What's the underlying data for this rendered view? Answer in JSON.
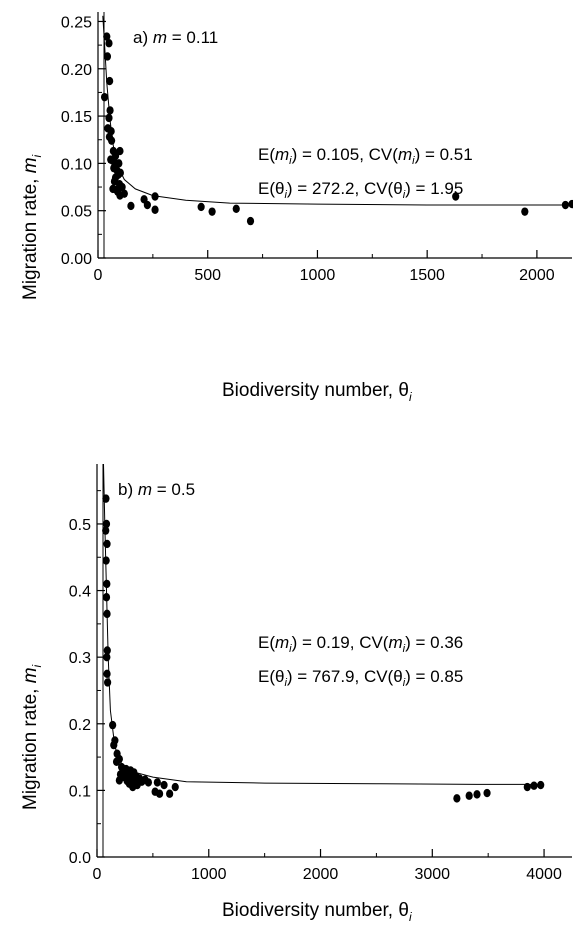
{
  "chart_data": [
    {
      "type": "scatter",
      "panel_label": "a) ",
      "panel_var": "m",
      "panel_value": " = 0.11",
      "xlabel": "Biodiversity number, ",
      "xlabel_symbol": "θ",
      "xlabel_sub": "i",
      "ylabel": "Migration rate, ",
      "ylabel_symbol": "m",
      "ylabel_sub": "i",
      "xlim": [
        0,
        2160
      ],
      "ylim": [
        0,
        0.26
      ],
      "xticks": [
        0,
        500,
        1000,
        1500,
        2000
      ],
      "xtick_labels": [
        "0",
        "500",
        "1000",
        "1500",
        "2000"
      ],
      "yticks": [
        0,
        0.05,
        0.1,
        0.15,
        0.2,
        0.25
      ],
      "ytick_labels": [
        "0.00",
        "0.05",
        "0.10",
        "0.15",
        "0.20",
        "0.25"
      ],
      "annotation_lines": [
        {
          "a": "E(",
          "b": "m",
          "c": ") = 0.105, CV(",
          "d": "m",
          "e": ") = 0.51"
        },
        {
          "a": "E(",
          "b": "θ",
          "c": ") = 272.2, CV(",
          "d": "θ",
          "e": ") = 1.95"
        }
      ],
      "points": [
        [
          40,
          0.234
        ],
        [
          50,
          0.227
        ],
        [
          43,
          0.213
        ],
        [
          53,
          0.187
        ],
        [
          30,
          0.17
        ],
        [
          55,
          0.156
        ],
        [
          50,
          0.148
        ],
        [
          45,
          0.137
        ],
        [
          60,
          0.134
        ],
        [
          52,
          0.128
        ],
        [
          62,
          0.124
        ],
        [
          70,
          0.113
        ],
        [
          100,
          0.113
        ],
        [
          80,
          0.108
        ],
        [
          58,
          0.104
        ],
        [
          66,
          0.103
        ],
        [
          78,
          0.1
        ],
        [
          95,
          0.1
        ],
        [
          72,
          0.095
        ],
        [
          88,
          0.092
        ],
        [
          102,
          0.09
        ],
        [
          92,
          0.088
        ],
        [
          80,
          0.085
        ],
        [
          75,
          0.081
        ],
        [
          98,
          0.078
        ],
        [
          110,
          0.075
        ],
        [
          68,
          0.073
        ],
        [
          84,
          0.072
        ],
        [
          90,
          0.07
        ],
        [
          120,
          0.068
        ],
        [
          100,
          0.066
        ],
        [
          260,
          0.065
        ],
        [
          210,
          0.062
        ],
        [
          225,
          0.056
        ],
        [
          150,
          0.055
        ],
        [
          470,
          0.054
        ],
        [
          260,
          0.051
        ],
        [
          630,
          0.052
        ],
        [
          520,
          0.049
        ],
        [
          695,
          0.039
        ],
        [
          1630,
          0.065
        ],
        [
          1945,
          0.049
        ],
        [
          2130,
          0.056
        ],
        [
          2160,
          0.057
        ]
      ],
      "fit_curve": [
        [
          22,
          0.256
        ],
        [
          30,
          0.225
        ],
        [
          40,
          0.185
        ],
        [
          55,
          0.145
        ],
        [
          70,
          0.118
        ],
        [
          90,
          0.097
        ],
        [
          120,
          0.083
        ],
        [
          170,
          0.073
        ],
        [
          250,
          0.066
        ],
        [
          400,
          0.061
        ],
        [
          600,
          0.058
        ],
        [
          1000,
          0.057
        ],
        [
          1500,
          0.056
        ],
        [
          2160,
          0.056
        ]
      ]
    },
    {
      "type": "scatter",
      "panel_label": "b) ",
      "panel_var": "m",
      "panel_value": " = 0.5",
      "xlabel": "Biodiversity number, ",
      "xlabel_symbol": "θ",
      "xlabel_sub": "i",
      "ylabel": "Migration rate, ",
      "ylabel_symbol": "m",
      "ylabel_sub": "i",
      "xlim": [
        0,
        4250
      ],
      "ylim": [
        0,
        0.59
      ],
      "xticks": [
        0,
        1000,
        2000,
        3000,
        4000
      ],
      "xtick_labels": [
        "0",
        "1000",
        "2000",
        "3000",
        "4000"
      ],
      "yticks": [
        0,
        0.1,
        0.2,
        0.3,
        0.4,
        0.5
      ],
      "ytick_labels": [
        "0.0",
        "0.1",
        "0.2",
        "0.3",
        "0.4",
        "0.5"
      ],
      "annotation_lines": [
        {
          "a": "E(",
          "b": "m",
          "c": ") = 0.19, CV(",
          "d": "m",
          "e": ") = 0.36"
        },
        {
          "a": "E(",
          "b": "θ",
          "c": ") = 767.9, CV(",
          "d": "θ",
          "e": ") = 0.85"
        }
      ],
      "points": [
        [
          80,
          0.538
        ],
        [
          85,
          0.5
        ],
        [
          78,
          0.49
        ],
        [
          90,
          0.47
        ],
        [
          82,
          0.445
        ],
        [
          88,
          0.41
        ],
        [
          85,
          0.39
        ],
        [
          90,
          0.365
        ],
        [
          92,
          0.31
        ],
        [
          88,
          0.3
        ],
        [
          90,
          0.275
        ],
        [
          95,
          0.262
        ],
        [
          140,
          0.198
        ],
        [
          160,
          0.175
        ],
        [
          150,
          0.168
        ],
        [
          180,
          0.155
        ],
        [
          200,
          0.147
        ],
        [
          175,
          0.143
        ],
        [
          220,
          0.135
        ],
        [
          260,
          0.132
        ],
        [
          300,
          0.13
        ],
        [
          250,
          0.128
        ],
        [
          330,
          0.127
        ],
        [
          210,
          0.124
        ],
        [
          280,
          0.122
        ],
        [
          350,
          0.121
        ],
        [
          240,
          0.12
        ],
        [
          380,
          0.118
        ],
        [
          310,
          0.117
        ],
        [
          430,
          0.116
        ],
        [
          200,
          0.115
        ],
        [
          270,
          0.114
        ],
        [
          400,
          0.113
        ],
        [
          340,
          0.112
        ],
        [
          460,
          0.112
        ],
        [
          540,
          0.112
        ],
        [
          290,
          0.11
        ],
        [
          360,
          0.108
        ],
        [
          320,
          0.105
        ],
        [
          600,
          0.108
        ],
        [
          700,
          0.105
        ],
        [
          520,
          0.098
        ],
        [
          560,
          0.095
        ],
        [
          650,
          0.095
        ],
        [
          3220,
          0.088
        ],
        [
          3330,
          0.092
        ],
        [
          3400,
          0.094
        ],
        [
          3490,
          0.096
        ],
        [
          3850,
          0.105
        ],
        [
          3910,
          0.107
        ],
        [
          3970,
          0.108
        ]
      ],
      "fit_curve": [
        [
          58,
          0.59
        ],
        [
          70,
          0.5
        ],
        [
          85,
          0.4
        ],
        [
          100,
          0.3
        ],
        [
          120,
          0.22
        ],
        [
          160,
          0.165
        ],
        [
          220,
          0.14
        ],
        [
          320,
          0.128
        ],
        [
          500,
          0.12
        ],
        [
          800,
          0.113
        ],
        [
          1500,
          0.111
        ],
        [
          2500,
          0.11
        ],
        [
          3400,
          0.109
        ],
        [
          4000,
          0.109
        ]
      ]
    }
  ]
}
